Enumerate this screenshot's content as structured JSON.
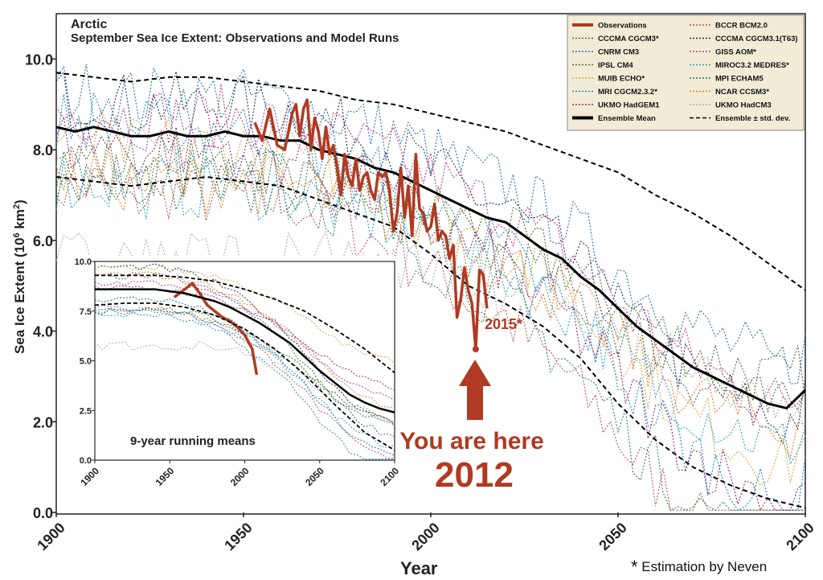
{
  "chart_data": [
    {
      "type": "line",
      "title": "Arctic",
      "subtitle": "September Sea Ice Extent: Observations and Model Runs",
      "xlabel": "Year",
      "ylabel": "Sea Ice Extent (10⁶ km²)",
      "xlim": [
        1900,
        2100
      ],
      "ylim": [
        0,
        11
      ],
      "xticks": [
        "1900",
        "1950",
        "2000",
        "2050",
        "2100"
      ],
      "yticks": [
        "0.0",
        "2.0",
        "4.0",
        "6.0",
        "8.0",
        "10.0"
      ],
      "legend_position": "top-right",
      "legend": [
        {
          "label": "Observations",
          "color": "#b03a22",
          "style": "solid-thick"
        },
        {
          "label": "BCCR BCM2.0",
          "color": "#c0504d",
          "style": "dotted"
        },
        {
          "label": "CCCMA CGCM3*",
          "color": "#4f6b2a",
          "style": "dotted"
        },
        {
          "label": "CCCMA CGCM3.1(T63)",
          "color": "#1f2d5a",
          "style": "dotted"
        },
        {
          "label": "CNRM CM3",
          "color": "#2b6cb0",
          "style": "dotted"
        },
        {
          "label": "GISS AOM*",
          "color": "#c0398a",
          "style": "dotted"
        },
        {
          "label": "IPSL CM4",
          "color": "#3d6b4f",
          "style": "dotted"
        },
        {
          "label": "MIROC3.2 MEDRES*",
          "color": "#2aa0c8",
          "style": "dotted"
        },
        {
          "label": "MUIB ECHO*",
          "color": "#d9a441",
          "style": "dotted"
        },
        {
          "label": "MPI ECHAM5",
          "color": "#2e7d5b",
          "style": "dotted"
        },
        {
          "label": "MRI CGCM2.3.2*",
          "color": "#1e88c8",
          "style": "dotted"
        },
        {
          "label": "NCAR CCSM3*",
          "color": "#e07b1f",
          "style": "dotted"
        },
        {
          "label": "UKMO HadGEM1",
          "color": "#8e2a6e",
          "style": "dotted"
        },
        {
          "label": "UKMO HadCM3",
          "color": "#aaaaaa",
          "style": "dotted"
        },
        {
          "label": "Ensemble Mean",
          "color": "#000000",
          "style": "solid-thick"
        },
        {
          "label": "Ensemble ± std. dev.",
          "color": "#000000",
          "style": "dashed"
        }
      ],
      "series": [
        {
          "name": "Observations",
          "x": [
            1953,
            1955,
            1957,
            1959,
            1961,
            1963,
            1964,
            1965,
            1966,
            1967,
            1968,
            1969,
            1970,
            1971,
            1972,
            1973,
            1974,
            1975,
            1976,
            1977,
            1978,
            1979,
            1980,
            1981,
            1982,
            1983,
            1984,
            1985,
            1986,
            1987,
            1988,
            1989,
            1990,
            1991,
            1992,
            1993,
            1994,
            1995,
            1996,
            1997,
            1998,
            1999,
            2000,
            2001,
            2002,
            2003,
            2004,
            2005,
            2006,
            2007,
            2008,
            2009,
            2010,
            2011,
            2012
          ],
          "y": [
            8.6,
            8.2,
            8.9,
            8.1,
            8.0,
            8.8,
            9.0,
            8.3,
            8.9,
            9.1,
            8.0,
            8.7,
            8.4,
            7.8,
            8.5,
            7.9,
            8.1,
            7.6,
            7.0,
            7.9,
            7.4,
            7.2,
            7.8,
            7.1,
            7.4,
            7.5,
            7.1,
            6.9,
            7.5,
            7.4,
            7.5,
            7.1,
            6.2,
            6.6,
            7.6,
            6.5,
            7.2,
            6.1,
            7.9,
            6.7,
            6.6,
            6.2,
            6.3,
            6.8,
            6.0,
            6.2,
            6.1,
            5.6,
            5.9,
            4.3,
            4.7,
            5.4,
            4.9,
            4.6,
            3.6
          ]
        },
        {
          "name": "Observations (2015 estimate)",
          "x": [
            2012,
            2013,
            2014,
            2015
          ],
          "y": [
            3.6,
            5.35,
            5.25,
            4.5
          ]
        },
        {
          "name": "Ensemble Mean",
          "x": [
            1900,
            1905,
            1910,
            1915,
            1920,
            1925,
            1930,
            1935,
            1940,
            1945,
            1950,
            1955,
            1960,
            1965,
            1970,
            1975,
            1980,
            1985,
            1990,
            1995,
            2000,
            2005,
            2010,
            2015,
            2020,
            2025,
            2030,
            2035,
            2040,
            2045,
            2050,
            2055,
            2060,
            2065,
            2070,
            2075,
            2080,
            2085,
            2090,
            2095,
            2100
          ],
          "y": [
            8.5,
            8.4,
            8.5,
            8.4,
            8.3,
            8.3,
            8.4,
            8.3,
            8.3,
            8.4,
            8.3,
            8.3,
            8.2,
            8.2,
            8.0,
            7.9,
            7.8,
            7.6,
            7.5,
            7.3,
            7.1,
            6.9,
            6.7,
            6.5,
            6.4,
            6.1,
            5.8,
            5.6,
            5.2,
            4.9,
            4.5,
            4.1,
            3.8,
            3.5,
            3.2,
            3.0,
            2.8,
            2.6,
            2.4,
            2.3,
            2.7
          ]
        },
        {
          "name": "Ensemble + std. dev.",
          "x": [
            1900,
            1910,
            1920,
            1930,
            1940,
            1950,
            1960,
            1970,
            1980,
            1990,
            2000,
            2010,
            2020,
            2030,
            2040,
            2050,
            2060,
            2070,
            2080,
            2090,
            2100
          ],
          "y": [
            9.7,
            9.6,
            9.5,
            9.6,
            9.6,
            9.5,
            9.4,
            9.3,
            9.1,
            9.0,
            8.8,
            8.6,
            8.4,
            8.1,
            7.8,
            7.5,
            7.0,
            6.6,
            6.1,
            5.5,
            4.9
          ]
        },
        {
          "name": "Ensemble - std. dev.",
          "x": [
            1900,
            1910,
            1920,
            1930,
            1940,
            1950,
            1960,
            1970,
            1980,
            1990,
            2000,
            2010,
            2020,
            2030,
            2040,
            2050,
            2060,
            2070,
            2080,
            2090,
            2100
          ],
          "y": [
            7.4,
            7.3,
            7.2,
            7.3,
            7.4,
            7.3,
            7.2,
            6.9,
            6.6,
            6.3,
            5.7,
            5.0,
            4.6,
            4.1,
            3.4,
            2.4,
            1.6,
            1.0,
            0.6,
            0.3,
            0.1
          ]
        }
      ],
      "annotations": {
        "estimate_label": "2015*",
        "you_are_here": "You are here",
        "year_marker": "2012"
      }
    },
    {
      "type": "line",
      "title": "9-year running means",
      "xlim": [
        1900,
        2100
      ],
      "ylim": [
        0,
        10
      ],
      "xticks": [
        "1900",
        "1950",
        "2000",
        "2050",
        "2100"
      ],
      "yticks": [
        "0.0",
        "2.5",
        "5.0",
        "7.5",
        "10.0"
      ],
      "series": [
        {
          "name": "Observations",
          "x": [
            1953,
            1960,
            1965,
            1970,
            1975,
            1980,
            1985,
            1990,
            1995,
            2000,
            2005,
            2008
          ],
          "y": [
            8.2,
            8.6,
            8.9,
            8.4,
            7.8,
            7.5,
            7.2,
            7.0,
            6.7,
            6.3,
            5.6,
            4.3
          ]
        },
        {
          "name": "Ensemble Mean",
          "x": [
            1900,
            1920,
            1940,
            1950,
            1960,
            1970,
            1980,
            1990,
            2000,
            2010,
            2020,
            2030,
            2040,
            2050,
            2060,
            2070,
            2080,
            2090,
            2100
          ],
          "y": [
            8.6,
            8.6,
            8.6,
            8.5,
            8.4,
            8.2,
            8.0,
            7.7,
            7.3,
            6.9,
            6.4,
            5.9,
            5.2,
            4.5,
            3.9,
            3.3,
            2.9,
            2.6,
            2.4
          ]
        },
        {
          "name": "Ensemble + std. dev.",
          "x": [
            1900,
            1920,
            1940,
            1960,
            1980,
            2000,
            2020,
            2040,
            2060,
            2080,
            2100
          ],
          "y": [
            9.3,
            9.3,
            9.3,
            9.2,
            9.0,
            8.6,
            8.1,
            7.5,
            6.6,
            5.6,
            4.4
          ]
        },
        {
          "name": "Ensemble - std. dev.",
          "x": [
            1900,
            1920,
            1940,
            1960,
            1980,
            2000,
            2020,
            2040,
            2060,
            2080,
            2100
          ],
          "y": [
            7.8,
            7.9,
            7.9,
            7.7,
            7.3,
            6.6,
            5.6,
            4.3,
            2.8,
            1.4,
            0.5
          ]
        }
      ]
    }
  ],
  "footnote": {
    "marker": "*",
    "text": " Estimation by Neven"
  }
}
